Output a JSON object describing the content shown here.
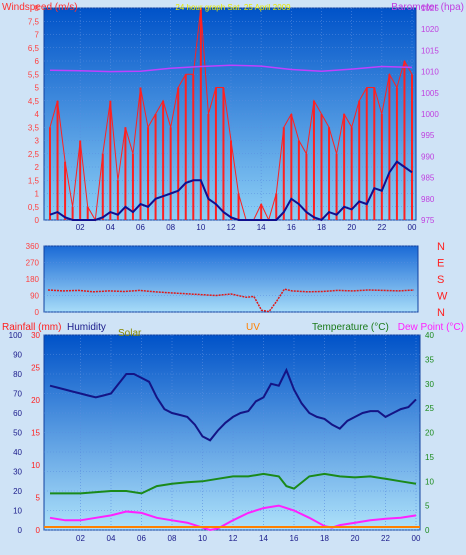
{
  "chart_data": [
    {
      "type": "line",
      "title": "24 hour graph Sat. 25 April 2009",
      "ylabel_left": "Windspeed (m/s)",
      "ylabel_right": "Barometer (hpa)",
      "x_ticks": [
        "02",
        "04",
        "06",
        "08",
        "10",
        "12",
        "14",
        "16",
        "18",
        "20",
        "22",
        "00"
      ],
      "left_ticks": [
        "0",
        "0,5",
        "1",
        "1,5",
        "2",
        "2,5",
        "3",
        "3,5",
        "4",
        "4,5",
        "5",
        "5,5",
        "6",
        "6,5",
        "7",
        "7,5",
        "8"
      ],
      "right_ticks": [
        "975",
        "980",
        "985",
        "990",
        "995",
        "1000",
        "1005",
        "1010",
        "1015",
        "1020",
        "1025"
      ],
      "ylim_left": [
        0,
        8
      ],
      "ylim_right": [
        975,
        1025
      ],
      "series": [
        {
          "color": "#ff2020",
          "axis": "left",
          "kind": "gust",
          "x": [
            0,
            0.5,
            1,
            1.5,
            2,
            2.5,
            3,
            3.5,
            4,
            4.5,
            5,
            5.5,
            6,
            6.5,
            7,
            7.5,
            8,
            8.5,
            9,
            9.5,
            10,
            10.5,
            11,
            11.5,
            12,
            12.5,
            13,
            13.5,
            14,
            14.5,
            15,
            15.5,
            16,
            16.5,
            17,
            17.5,
            18,
            18.5,
            19,
            19.5,
            20,
            20.5,
            21,
            21.5,
            22,
            22.5,
            23,
            23.5,
            24
          ],
          "values": [
            3.5,
            4.5,
            2.2,
            0.5,
            3,
            0.5,
            0,
            2.5,
            4.5,
            1.5,
            3.5,
            2.5,
            5,
            3.5,
            4,
            4.5,
            3.5,
            5,
            5.5,
            5.5,
            8,
            4,
            5,
            5,
            3,
            1,
            0,
            0,
            0.6,
            0,
            1,
            3.5,
            4,
            3,
            2.5,
            4.5,
            4,
            3.5,
            2.5,
            4,
            3.5,
            4.5,
            5,
            5,
            4,
            5.5,
            5,
            6,
            5.5
          ]
        },
        {
          "color": "#10108f",
          "axis": "left",
          "kind": "average",
          "x": [
            0,
            0.5,
            1,
            1.5,
            2,
            2.5,
            3,
            3.5,
            4,
            4.5,
            5,
            5.5,
            6,
            6.5,
            7,
            7.5,
            8,
            8.5,
            9,
            9.5,
            10,
            10.5,
            11,
            11.5,
            12,
            12.5,
            13,
            13.5,
            14,
            14.5,
            15,
            15.5,
            16,
            16.5,
            17,
            17.5,
            18,
            18.5,
            19,
            19.5,
            20,
            20.5,
            21,
            21.5,
            22,
            22.5,
            23,
            23.5,
            24
          ],
          "values": [
            0.2,
            0.3,
            0.1,
            0,
            0,
            0,
            0,
            0.1,
            0.3,
            0.2,
            0.5,
            0.3,
            0.6,
            0.5,
            0.8,
            0.9,
            1,
            1.1,
            1.4,
            1.5,
            1.5,
            0.8,
            0.6,
            0.3,
            0.1,
            0,
            0,
            0,
            0,
            0,
            0,
            0.3,
            0.8,
            0.6,
            0.3,
            0.1,
            0,
            0.3,
            0.2,
            0.5,
            0.4,
            0.7,
            0.6,
            1.2,
            1.1,
            1.8,
            2.2,
            2,
            1.8
          ]
        },
        {
          "color": "#c040ff",
          "axis": "right",
          "kind": "barometer",
          "x": [
            0,
            2,
            4,
            6,
            8,
            10,
            12,
            14,
            16,
            18,
            20,
            22,
            24
          ],
          "values": [
            1010.3,
            1010.2,
            1010,
            1010.1,
            1010.8,
            1011.2,
            1011.5,
            1011.3,
            1010.5,
            1010.1,
            1010.6,
            1011.2,
            1011
          ]
        }
      ]
    },
    {
      "type": "line",
      "ylabel_right": [
        "N",
        "W",
        "S",
        "E",
        "N"
      ],
      "left_ticks": [
        "0",
        "90",
        "180",
        "270",
        "360"
      ],
      "ylim": [
        0,
        360
      ],
      "series": [
        {
          "color": "#e01818",
          "name": "",
          "x": [
            0,
            1,
            2,
            3,
            4,
            5,
            6,
            7,
            8,
            9,
            10,
            11,
            12,
            13,
            13.5,
            14,
            14.5,
            15,
            15.5,
            16,
            17,
            18,
            19,
            20,
            21,
            22,
            23,
            24
          ],
          "values": [
            120,
            115,
            118,
            110,
            115,
            112,
            118,
            110,
            105,
            100,
            95,
            90,
            98,
            80,
            85,
            10,
            2,
            60,
            125,
            115,
            110,
            112,
            118,
            115,
            120,
            118,
            115,
            120
          ]
        }
      ]
    },
    {
      "type": "line",
      "ylabel_left": "Rainfall (mm)",
      "labels": {
        "humidity": "Humidity",
        "solar": "Solar",
        "uv": "UV",
        "temp": "Temperature (°C)",
        "dew": "Dew Point (°C)"
      },
      "left_ticks": [
        "0",
        "10",
        "20",
        "30",
        "40",
        "50",
        "60",
        "70",
        "80",
        "90",
        "100"
      ],
      "mid_ticks": [
        "0",
        "5",
        "10",
        "15",
        "20",
        "25",
        "30"
      ],
      "right_ticks": [
        "0",
        "5",
        "10",
        "15",
        "20",
        "25",
        "30",
        "35",
        "40"
      ],
      "x_ticks": [
        "02",
        "04",
        "06",
        "08",
        "10",
        "12",
        "14",
        "16",
        "18",
        "20",
        "22",
        "00"
      ],
      "ylim_left": [
        0,
        100
      ],
      "ylim_right": [
        0,
        40
      ],
      "series": [
        {
          "color": "#141485",
          "name": "humidity",
          "axis": "left",
          "x": [
            0,
            0.5,
            1,
            1.5,
            2,
            2.5,
            3,
            3.5,
            4,
            4.5,
            5,
            5.5,
            6,
            6.5,
            7,
            7.5,
            8,
            8.5,
            9,
            9.5,
            10,
            10.5,
            11,
            11.5,
            12,
            12.5,
            13,
            13.5,
            14,
            14.5,
            15,
            15.5,
            16,
            16.5,
            17,
            17.5,
            18,
            18.5,
            19,
            19.5,
            20,
            20.5,
            21,
            21.5,
            22,
            22.5,
            23,
            23.5,
            24
          ],
          "values": [
            74,
            73,
            72,
            71,
            70,
            69,
            68,
            69,
            70,
            75,
            80,
            80,
            78,
            76,
            68,
            62,
            60,
            59,
            58,
            54,
            48,
            46,
            51,
            55,
            58,
            60,
            61,
            66,
            68,
            75,
            74,
            82,
            72,
            65,
            60,
            58,
            57,
            54,
            52,
            56,
            58,
            60,
            61,
            61,
            58,
            60,
            62,
            63,
            67
          ]
        },
        {
          "color": "#1a8a1a",
          "name": "temperature",
          "axis": "right",
          "x": [
            0,
            2,
            4,
            5,
            6,
            7,
            8,
            9,
            10,
            11,
            12,
            13,
            14,
            15,
            15.5,
            16,
            17,
            18,
            19,
            20,
            21,
            22,
            23,
            24
          ],
          "values": [
            7.5,
            7.5,
            8,
            8,
            7.5,
            9,
            9.5,
            9.8,
            10,
            10.5,
            11,
            11,
            11.5,
            11,
            9,
            8.5,
            11,
            11.5,
            11,
            10.8,
            11,
            10.5,
            10,
            9.5
          ]
        },
        {
          "color": "#ff20ff",
          "name": "dew point",
          "axis": "right",
          "x": [
            0,
            1,
            2,
            3,
            4,
            5,
            6,
            7,
            8,
            9,
            10,
            10.5,
            11,
            12,
            13,
            14,
            15,
            16,
            17,
            18,
            18.5,
            19,
            20,
            21,
            22,
            23,
            24
          ],
          "values": [
            2.5,
            2,
            2,
            2.5,
            3,
            3.8,
            3.5,
            2.5,
            2,
            1.5,
            0.5,
            0,
            0.3,
            2,
            3.5,
            4.5,
            5,
            4,
            2.5,
            0.8,
            0.5,
            1,
            1.5,
            2,
            2.3,
            2.5,
            3
          ]
        }
      ]
    }
  ]
}
